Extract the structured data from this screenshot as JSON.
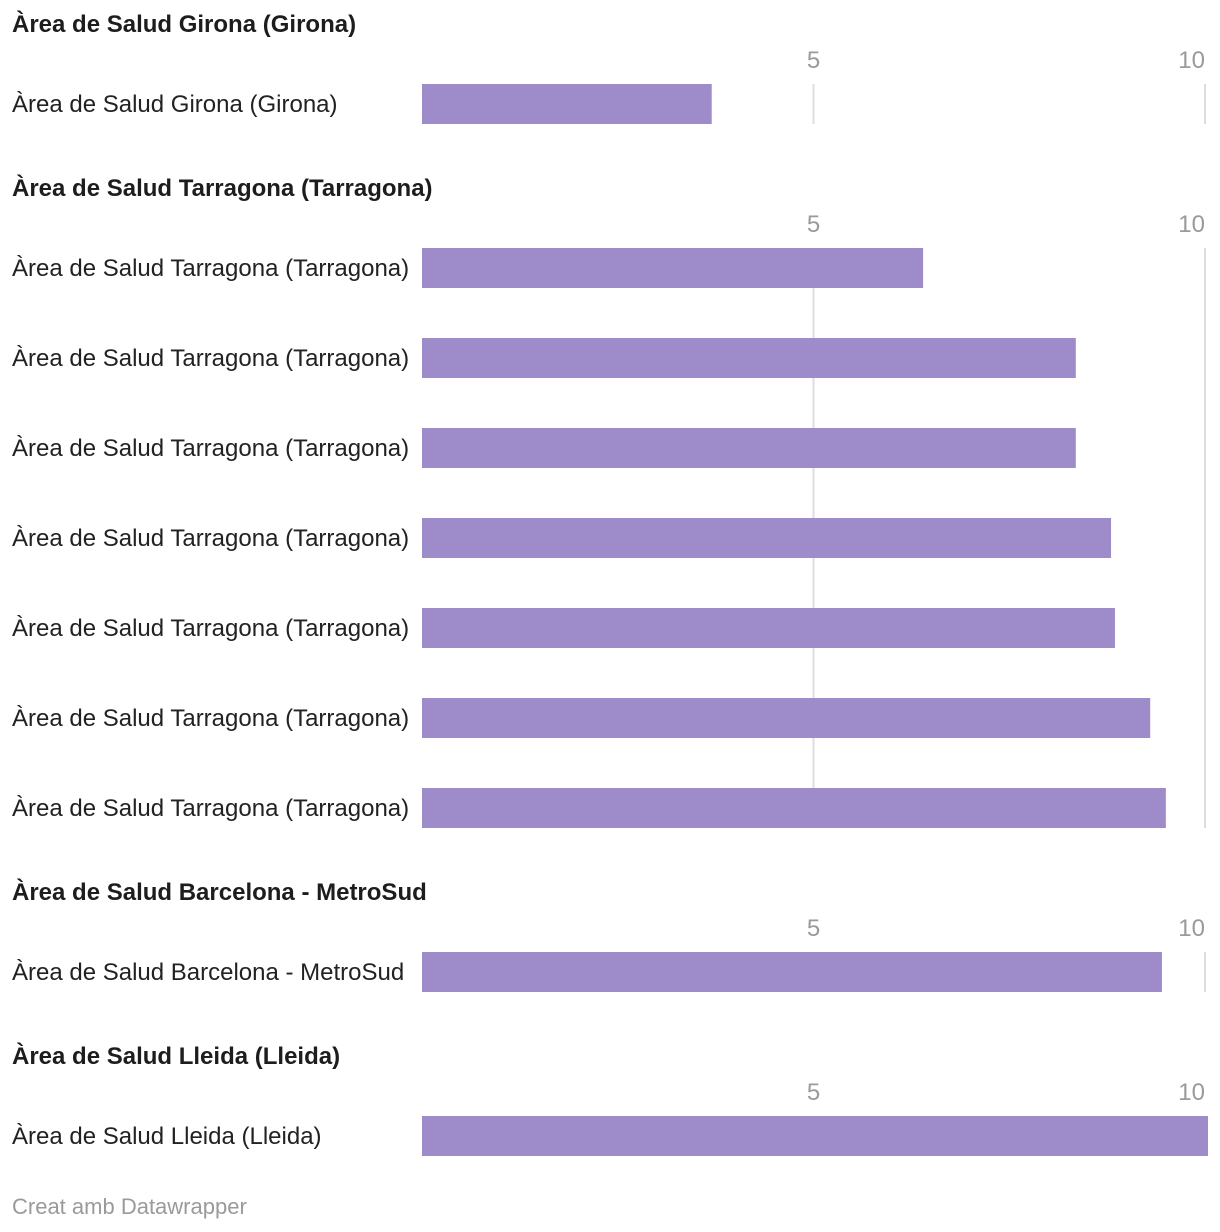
{
  "chart_data": {
    "type": "bar",
    "orientation": "horizontal",
    "grouped": true,
    "xlim": [
      0,
      10
    ],
    "ticks": [
      5,
      10
    ],
    "tick_labels": [
      "5",
      "10"
    ],
    "bar_color": "#9e8bca",
    "grid": true,
    "groups": [
      {
        "title": "Àrea de Salud Girona (Girona)",
        "rows": [
          {
            "label": "Àrea de Salud Girona (Girona)",
            "value": 3.7
          }
        ]
      },
      {
        "title": "Àrea de Salud Tarragona (Tarragona)",
        "rows": [
          {
            "label": "Àrea de Salud Tarragona (Tarragona)",
            "value": 6.4
          },
          {
            "label": "Àrea de Salud Tarragona (Tarragona)",
            "value": 8.35
          },
          {
            "label": "Àrea de Salud Tarragona (Tarragona)",
            "value": 8.35
          },
          {
            "label": "Àrea de Salud Tarragona (Tarragona)",
            "value": 8.8
          },
          {
            "label": "Àrea de Salud Tarragona (Tarragona)",
            "value": 8.85
          },
          {
            "label": "Àrea de Salud Tarragona (Tarragona)",
            "value": 9.3
          },
          {
            "label": "Àrea de Salud Tarragona (Tarragona)",
            "value": 9.5
          }
        ]
      },
      {
        "title": "Àrea de Salud Barcelona - MetroSud",
        "rows": [
          {
            "label": "Àrea de Salud Barcelona - MetroSud",
            "value": 9.45
          }
        ]
      },
      {
        "title": "Àrea de Salud Lleida (Lleida)",
        "rows": [
          {
            "label": "Àrea de Salud Lleida (Lleida)",
            "value": 10.05
          }
        ]
      }
    ]
  },
  "footer": {
    "credit": "Creat amb Datawrapper"
  }
}
